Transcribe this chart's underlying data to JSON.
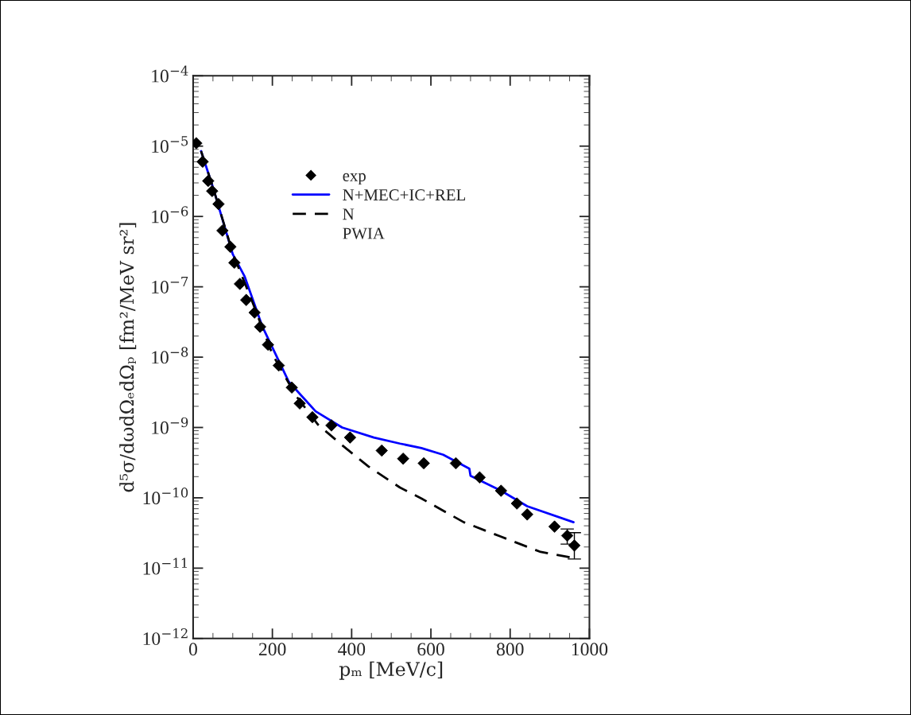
{
  "chart_data": {
    "type": "scatter",
    "xlabel": "pₘ [MeV/c]",
    "ylabel": "d⁵σ/dωdΩₑdΩₚ [fm²/MeV sr²]",
    "log": "y",
    "xlim": [
      0,
      1000
    ],
    "xticks": [
      0,
      200,
      400,
      600,
      800,
      1000
    ],
    "ylim": [
      1e-12,
      0.0001
    ],
    "yticks": [
      {
        "value": 1e-12,
        "label": "10$^{−12}$"
      },
      {
        "value": 1e-11,
        "label": "10$^{−11}$"
      },
      {
        "value": 1e-10,
        "label": "10$^{−10}$"
      },
      {
        "value": 1e-09,
        "label": "10$^{−9}$"
      },
      {
        "value": 1e-08,
        "label": "10$^{−8}$"
      },
      {
        "value": 1e-07,
        "label": "10$^{−7}$"
      },
      {
        "value": 1e-06,
        "label": "10$^{−6}$"
      },
      {
        "value": 1e-05,
        "label": "10$^{−5}$"
      },
      {
        "value": 0.0001,
        "label": "10$^{−4}$"
      }
    ],
    "legend": "top",
    "annotations": [
      "PWIA"
    ],
    "series": [
      {
        "name": "exp",
        "marker": "diamond",
        "color": "#000000",
        "x": [
          8,
          24,
          38,
          48,
          64,
          74,
          94,
          104,
          118,
          134,
          155,
          169,
          189,
          216,
          249,
          269,
          301,
          349,
          396,
          476,
          530,
          582,
          663,
          723,
          777,
          817,
          843,
          912,
          944,
          962
        ],
        "values": [
          1.1e-05,
          6e-06,
          3.2e-06,
          2.3e-06,
          1.5e-06,
          6.3e-07,
          3.7e-07,
          2.2e-07,
          1.1e-07,
          6.5e-08,
          4.3e-08,
          2.7e-08,
          1.5e-08,
          7.6e-09,
          3.7e-09,
          2.2e-09,
          1.4e-09,
          1.07e-09,
          7.2e-10,
          4.7e-10,
          3.6e-10,
          3.1e-10,
          3.1e-10,
          1.95e-10,
          1.26e-10,
          8.3e-11,
          5.8e-11,
          3.9e-11,
          2.9e-11,
          2.1e-11
        ],
        "errors": [
          null,
          null,
          null,
          null,
          null,
          null,
          null,
          null,
          null,
          null,
          null,
          null,
          null,
          null,
          null,
          null,
          null,
          null,
          null,
          null,
          null,
          null,
          null,
          null,
          null,
          null,
          null,
          null,
          [
            2.2e-11,
            3.6e-11
          ],
          [
            1.35e-11,
            3.2e-11
          ]
        ]
      },
      {
        "name": "N+MEC+IC+REL",
        "type": "line",
        "line_style": "solid",
        "color": "#0000ff",
        "x": [
          20,
          50,
          100,
          130,
          175,
          241,
          309,
          376,
          456,
          522,
          576,
          631,
          697,
          700,
          777,
          843,
          960
        ],
        "values": [
          8.5e-06,
          2.6e-06,
          2.9e-07,
          1.4e-07,
          2.7e-08,
          4.5e-09,
          1.7e-09,
          1e-09,
          7.2e-10,
          5.9e-10,
          5.1e-10,
          4.1e-10,
          2.6e-10,
          2.05e-10,
          1.26e-10,
          7.6e-11,
          4.5e-11
        ]
      },
      {
        "name": "N",
        "type": "line",
        "line_style": "dashed",
        "color": "#000000",
        "x": [
          20,
          50,
          100,
          150,
          200,
          260,
          315,
          376,
          442,
          522,
          576,
          683,
          777,
          877,
          958
        ],
        "values": [
          8.5e-06,
          2.6e-06,
          3e-07,
          6e-08,
          1.1e-08,
          2.8e-09,
          1.1e-09,
          5.6e-10,
          2.8e-10,
          1.4e-10,
          9.8e-11,
          4.5e-11,
          2.8e-11,
          1.7e-11,
          1.4e-11
        ]
      }
    ]
  }
}
